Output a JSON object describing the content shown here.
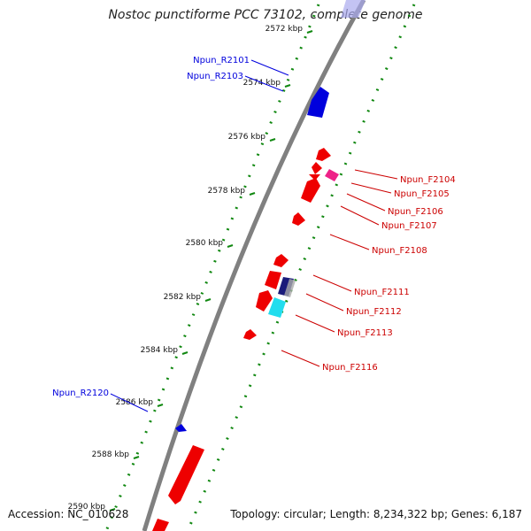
{
  "title": "Nostoc punctiforme PCC 73102, complete genome",
  "accession": "Accession: NC_010628",
  "topology": "Topology: circular; Length: 8,234,322 bp; Genes: 6,187",
  "colors": {
    "backbone": "#808080",
    "reverse": "#0000dd",
    "forward": "#ee0000",
    "forward_label": "#cc0000",
    "tick_dots": "#118811",
    "magenta": "#ee2288",
    "navy": "#1a1a7a",
    "cyan": "#22ddee"
  },
  "scale_ticks": [
    "2572 kbp",
    "2574 kbp",
    "2576 kbp",
    "2578 kbp",
    "2580 kbp",
    "2582 kbp",
    "2584 kbp",
    "2586 kbp",
    "2588 kbp",
    "2590 kbp"
  ],
  "reverse_labels": [
    "Npun_R2101",
    "Npun_R2103",
    "Npun_R2120"
  ],
  "forward_labels": [
    "Npun_F2104",
    "Npun_F2105",
    "Npun_F2106",
    "Npun_F2107",
    "Npun_F2108",
    "Npun_F2111",
    "Npun_F2112",
    "Npun_F2113",
    "Npun_F2116"
  ]
}
